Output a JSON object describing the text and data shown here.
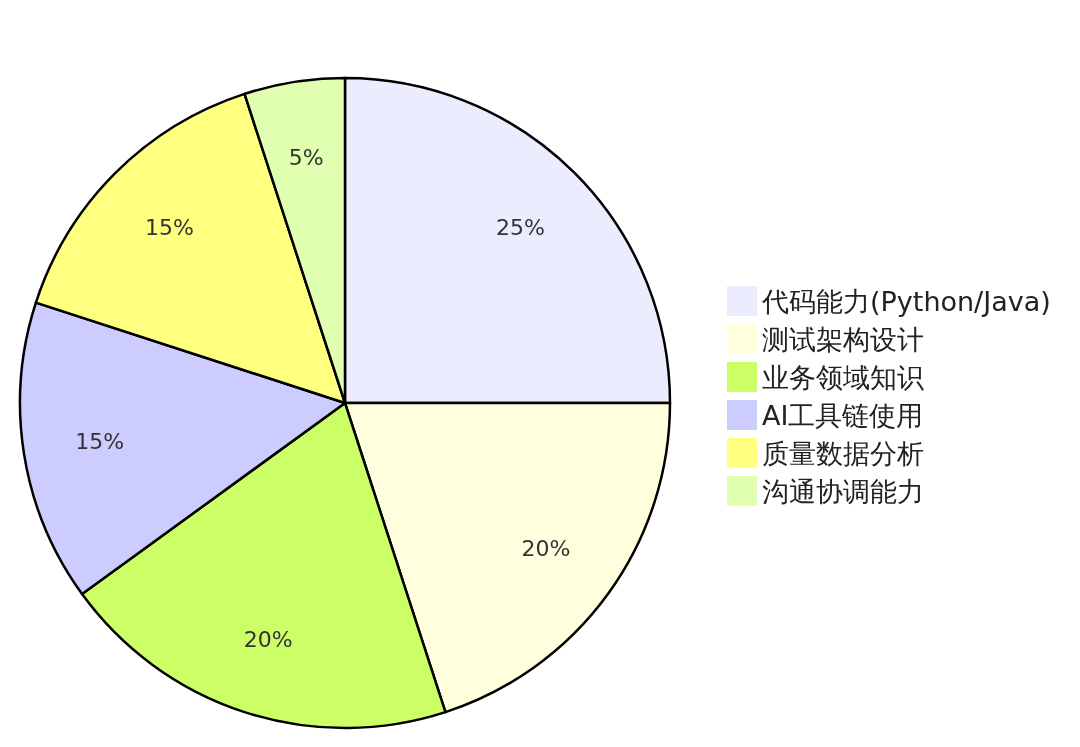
{
  "chart_data": {
    "type": "pie",
    "categories": [
      "代码能力(Python/Java)",
      "测试架构设计",
      "业务领域知识",
      "AI工具链使用",
      "质量数据分析",
      "沟通协调能力"
    ],
    "values": [
      25,
      20,
      20,
      15,
      15,
      5
    ],
    "value_labels": [
      "25%",
      "20%",
      "20%",
      "15%",
      "15%",
      "5%"
    ],
    "colors": [
      "#ececff",
      "#ffffde",
      "#ccff66",
      "#ccccff",
      "#ffff80",
      "#e0ffb0"
    ],
    "legend": "right"
  }
}
